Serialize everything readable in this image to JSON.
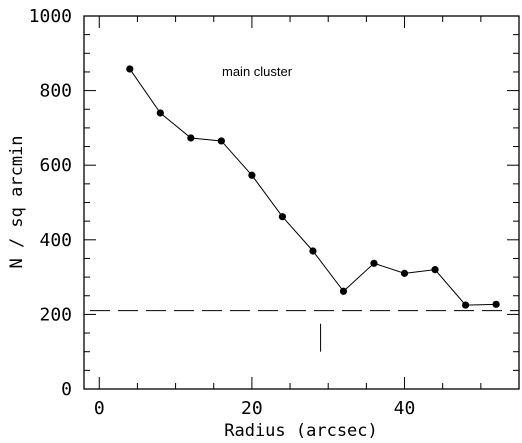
{
  "chart_data": {
    "type": "line",
    "xlabel": "Radius (arcsec)",
    "ylabel": "N / sq arcmin",
    "xlim": [
      -2,
      55
    ],
    "ylim": [
      0,
      1000
    ],
    "x_ticks": [
      0,
      20,
      40
    ],
    "y_ticks": [
      0,
      200,
      400,
      600,
      800,
      1000
    ],
    "series": [
      {
        "x": [
          4,
          8,
          12,
          16,
          20,
          24,
          28,
          32,
          36,
          40,
          44,
          48,
          52
        ],
        "y": [
          858,
          740,
          673,
          665,
          573,
          462,
          370,
          262,
          337,
          310,
          320,
          225,
          227
        ]
      }
    ],
    "background_level": 210,
    "marker_x": 29,
    "annotation": "main cluster",
    "grid": false,
    "legend": false
  }
}
